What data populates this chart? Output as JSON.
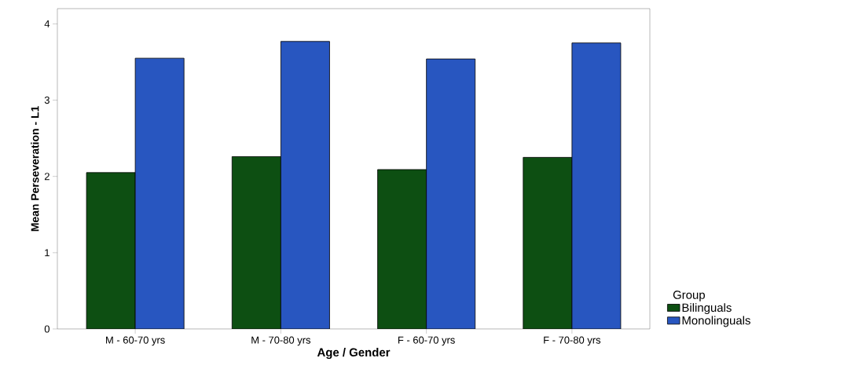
{
  "chart_data": {
    "type": "bar",
    "xlabel": "Age / Gender",
    "ylabel": "Mean Perseveration - L1",
    "legend_title": "Group",
    "categories": [
      "M - 60-70 yrs",
      "M - 70-80 yrs",
      "F - 60-70 yrs",
      "F - 70-80 yrs"
    ],
    "series": [
      {
        "name": "Bilinguals",
        "color": "#0d4f12",
        "values": [
          2.05,
          2.26,
          2.09,
          2.25
        ]
      },
      {
        "name": "Monolinguals",
        "color": "#2856c0",
        "values": [
          3.55,
          3.77,
          3.54,
          3.75
        ]
      }
    ],
    "ylim": [
      0,
      4.2
    ],
    "yticks": [
      0,
      1,
      2,
      3,
      4
    ],
    "grid": false,
    "legend": "bottom right"
  }
}
